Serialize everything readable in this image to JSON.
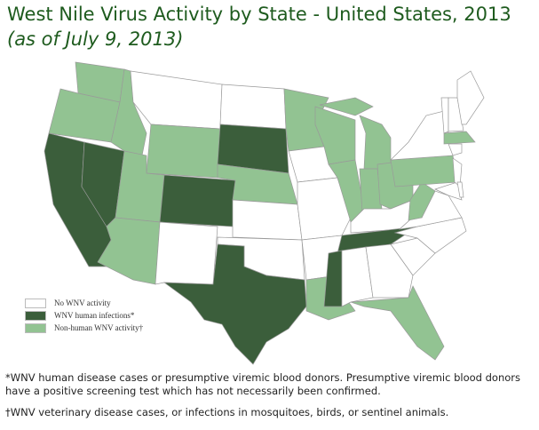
{
  "title": {
    "main": "West Nile Virus Activity by State - United States, 2013 ",
    "date": "(as of July 9, 2013)"
  },
  "colors": {
    "none": "#ffffff",
    "human": "#3b5e3b",
    "nonhuman": "#92c392",
    "border": "#9a9a9a"
  },
  "legend": [
    {
      "key": "none",
      "label": "No WNV activity"
    },
    {
      "key": "human",
      "label": "WNV human infections*"
    },
    {
      "key": "nonhuman",
      "label": "Non-human WNV activity†"
    }
  ],
  "states": {
    "WA": "nonhuman",
    "OR": "nonhuman",
    "CA": "human",
    "NV": "human",
    "ID": "nonhuman",
    "MT": "none",
    "WY": "nonhuman",
    "UT": "nonhuman",
    "AZ": "nonhuman",
    "CO": "human",
    "NM": "none",
    "ND": "none",
    "SD": "human",
    "NE": "nonhuman",
    "KS": "none",
    "OK": "none",
    "TX": "human",
    "MN": "nonhuman",
    "IA": "none",
    "MO": "none",
    "AR": "none",
    "LA": "nonhuman",
    "WI": "nonhuman",
    "IL": "nonhuman",
    "MI": "nonhuman",
    "IN": "nonhuman",
    "OH": "nonhuman",
    "KY": "none",
    "TN": "human",
    "MS": "human",
    "AL": "none",
    "GA": "none",
    "FL": "nonhuman",
    "SC": "none",
    "NC": "none",
    "VA": "none",
    "WV": "nonhuman",
    "PA": "nonhuman",
    "NY": "none",
    "MA": "nonhuman",
    "VT": "none",
    "NH": "none",
    "ME": "none",
    "NJ": "none",
    "CT": "none",
    "MD": "none",
    "DE": "none"
  },
  "footnotes": [
    "*WNV human disease cases or presumptive viremic blood donors. Presumptive viremic blood donors have a positive screening test which has not necessarily been confirmed.",
    "†WNV veterinary disease cases, or infections in mosquitoes, birds, or sentinel animals."
  ]
}
